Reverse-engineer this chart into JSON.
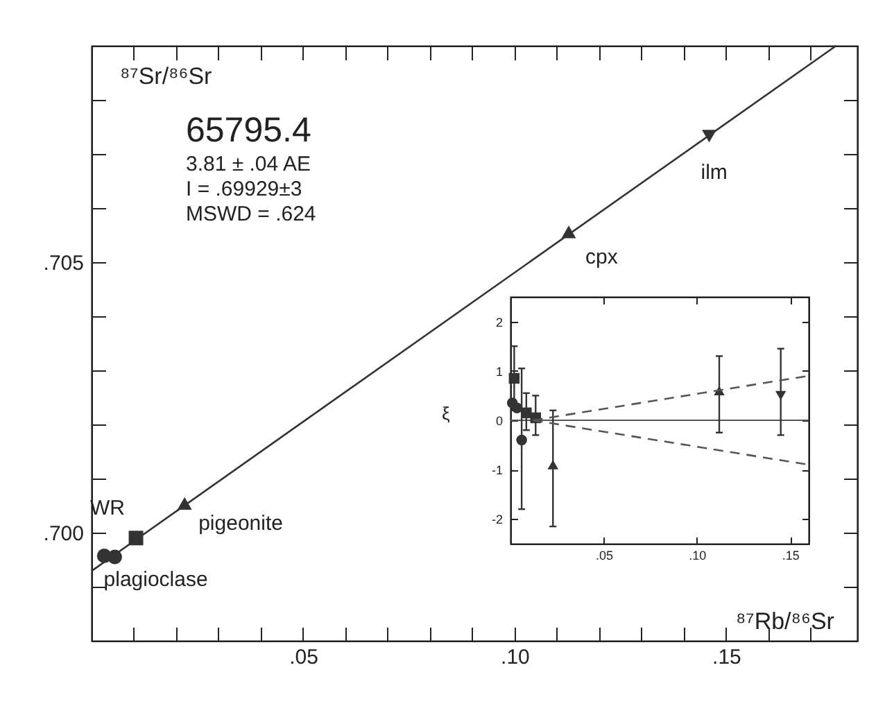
{
  "chart_data": [
    {
      "type": "scatter",
      "xlabel": "⁸⁷Rb/⁸⁶Sr",
      "ylabel": "⁸⁷Sr/⁸⁶Sr",
      "annotations": [
        "65795.4",
        "3.81 ± .04 AE",
        "I = .69929±3",
        "MSWD = .624"
      ],
      "xlim": [
        0,
        0.181
      ],
      "ylim": [
        0.698,
        0.709
      ],
      "xticks": [
        {
          "value": 0.01,
          "label": null
        },
        {
          "value": 0.02,
          "label": null
        },
        {
          "value": 0.03,
          "label": null
        },
        {
          "value": 0.04,
          "label": null
        },
        {
          "value": 0.05,
          "label": ".05"
        },
        {
          "value": 0.06,
          "label": null
        },
        {
          "value": 0.07,
          "label": null
        },
        {
          "value": 0.08,
          "label": null
        },
        {
          "value": 0.09,
          "label": null
        },
        {
          "value": 0.1,
          "label": ".10"
        },
        {
          "value": 0.11,
          "label": null
        },
        {
          "value": 0.12,
          "label": null
        },
        {
          "value": 0.13,
          "label": null
        },
        {
          "value": 0.14,
          "label": null
        },
        {
          "value": 0.15,
          "label": ".15"
        },
        {
          "value": 0.16,
          "label": null
        },
        {
          "value": 0.17,
          "label": null
        }
      ],
      "yticks": [
        {
          "value": 0.699,
          "label": null
        },
        {
          "value": 0.7,
          "label": ".700"
        },
        {
          "value": 0.701,
          "label": null
        },
        {
          "value": 0.702,
          "label": null
        },
        {
          "value": 0.703,
          "label": null
        },
        {
          "value": 0.704,
          "label": null
        },
        {
          "value": 0.705,
          "label": ".705"
        },
        {
          "value": 0.706,
          "label": null
        },
        {
          "value": 0.707,
          "label": null
        },
        {
          "value": 0.708,
          "label": null
        }
      ],
      "series": [
        {
          "name": "plagioclase",
          "color": "#333333",
          "marker": "circle",
          "x": [
            0.003,
            0.0055
          ],
          "values": [
            0.69957,
            0.69955
          ]
        },
        {
          "name": "WR",
          "color": "#333333",
          "marker": "square",
          "x": [
            0.0105
          ],
          "values": [
            0.6999
          ]
        },
        {
          "name": "pigeonite",
          "color": "#333333",
          "marker": "triangle",
          "x": [
            0.022
          ],
          "values": [
            0.70054
          ]
        },
        {
          "name": "cpx",
          "color": "#333333",
          "marker": "triangle",
          "x": [
            0.1128
          ],
          "values": [
            0.70556
          ]
        },
        {
          "name": "ilm",
          "color": "#333333",
          "marker": "triangle-down",
          "x": [
            0.146
          ],
          "values": [
            0.70733
          ]
        },
        {
          "type": "line",
          "color": "#333333",
          "marker": "none",
          "line_style": "solid",
          "x": [
            0,
            0.176
          ],
          "values": [
            0.69929,
            0.709
          ]
        }
      ]
    },
    {
      "type": "scatter",
      "ylabel": "ξ",
      "xlim": [
        0,
        0.16
      ],
      "ylim": [
        -2.5,
        2.5
      ],
      "xticks": [
        {
          "value": 0.05,
          "label": ".05"
        },
        {
          "value": 0.1,
          "label": ".10"
        },
        {
          "value": 0.15,
          "label": ".15"
        }
      ],
      "yticks": [
        -2,
        -1,
        0,
        1,
        2
      ],
      "ref_lines": [
        {
          "axis": "y",
          "value": 0,
          "color": "#555555",
          "line_style": "solid"
        }
      ],
      "series": [
        {
          "color": "#333333",
          "marker": "square",
          "x": [
            0.002,
            0.0085,
            0.0135
          ],
          "values": [
            0.85,
            0.15,
            0.05
          ],
          "errors": [
            [
              0.2,
              1.5
            ],
            [
              -0.2,
              0.55
            ],
            [
              -0.3,
              0.5
            ]
          ]
        },
        {
          "color": "#333333",
          "marker": "circle",
          "x": [
            0.001,
            0.0035,
            0.006
          ],
          "values": [
            0.35,
            0.25,
            -0.4
          ],
          "errors": [
            null,
            null,
            [
              -1.8,
              1.05
            ]
          ]
        },
        {
          "color": "#333333",
          "marker": "triangle",
          "x": [
            0.0228,
            0.112
          ],
          "values": [
            -0.9,
            0.6
          ],
          "errors": [
            [
              -2.15,
              0.2
            ],
            [
              -0.25,
              1.3
            ]
          ]
        },
        {
          "color": "#333333",
          "marker": "triangle-down",
          "x": [
            0.145
          ],
          "values": [
            0.5
          ],
          "errors": [
            [
              -0.3,
              1.45
            ]
          ]
        },
        {
          "type": "line",
          "color": "#555555",
          "marker": "none",
          "line_style": "dashed",
          "x": [
            0.012,
            0.16
          ],
          "values": [
            0,
            0.9
          ]
        },
        {
          "type": "line",
          "color": "#555555",
          "marker": "none",
          "line_style": "dashed",
          "x": [
            0.012,
            0.16
          ],
          "values": [
            0,
            -0.9
          ]
        }
      ]
    }
  ]
}
